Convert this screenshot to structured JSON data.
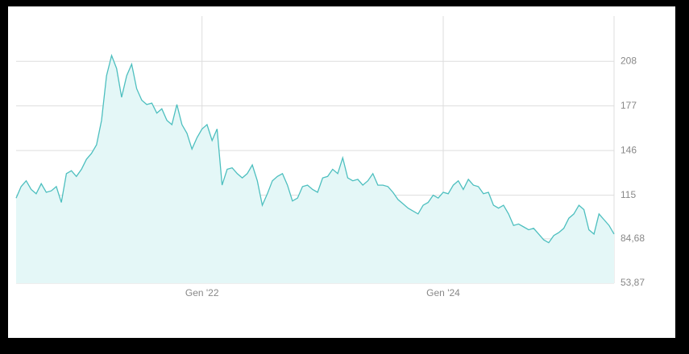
{
  "chart_data": {
    "type": "area",
    "categories": [
      null,
      null,
      null,
      null,
      null,
      null,
      null,
      null,
      null,
      null,
      null,
      null,
      null,
      null,
      null,
      null,
      null,
      null,
      null,
      null,
      null,
      null,
      null,
      null,
      null,
      null,
      null,
      null,
      null,
      null,
      null,
      null,
      null,
      null,
      null,
      null,
      null,
      "Gen '22",
      null,
      null,
      null,
      null,
      null,
      null,
      null,
      null,
      null,
      null,
      null,
      null,
      null,
      null,
      null,
      null,
      null,
      null,
      null,
      null,
      null,
      null,
      null,
      null,
      null,
      null,
      null,
      null,
      null,
      null,
      null,
      null,
      null,
      null,
      null,
      null,
      null,
      null,
      null,
      null,
      null,
      null,
      null,
      null,
      null,
      null,
      null,
      "Gen '24",
      null,
      null,
      null,
      null,
      null,
      null,
      null,
      null,
      null,
      null,
      null,
      null,
      null,
      null,
      null,
      null,
      null,
      null,
      null,
      null,
      null,
      null,
      null,
      null,
      null,
      null,
      null,
      null,
      null,
      null,
      null,
      null,
      null,
      null
    ],
    "values": [
      113,
      121,
      125,
      119,
      116,
      123,
      117,
      118,
      121,
      110,
      130,
      132,
      128,
      133,
      140,
      144,
      150,
      167,
      198,
      212,
      203,
      183,
      198,
      206,
      189,
      181,
      178,
      179,
      172,
      175,
      167,
      164,
      178,
      164,
      158,
      147,
      155,
      161,
      164,
      153,
      161,
      122,
      133,
      134,
      130,
      127,
      130,
      136,
      125,
      108,
      116,
      125,
      128,
      130,
      122,
      111,
      113,
      121,
      122,
      119,
      117,
      127,
      128,
      133,
      130,
      141,
      127,
      125,
      126,
      122,
      125,
      130,
      122,
      122,
      121,
      117,
      112,
      109,
      106,
      104,
      102,
      108,
      110,
      115,
      113,
      117,
      116,
      122,
      125,
      119,
      126,
      122,
      121,
      116,
      117,
      108,
      106,
      108,
      102,
      94,
      95,
      93,
      91,
      92,
      88,
      84,
      82,
      87,
      89,
      92,
      99,
      102,
      108,
      105,
      91,
      88,
      102,
      98,
      94,
      88
    ],
    "color": "#4dbfbf",
    "fill": "#e4f7f7",
    "ylim": [
      53.87,
      239.4
    ],
    "yticks": [
      {
        "value": 53.87,
        "label": "53,87"
      },
      {
        "value": 84.68,
        "label": "84,68"
      },
      115,
      146,
      177,
      208
    ],
    "grid": true
  }
}
